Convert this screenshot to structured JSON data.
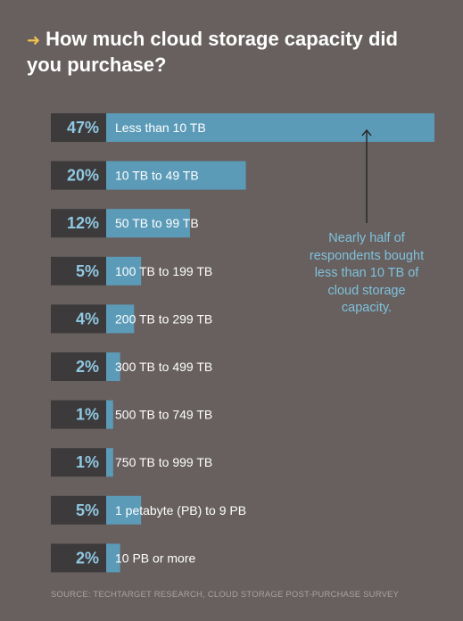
{
  "title": "How much cloud storage capacity did you purchase?",
  "annotation": "Nearly half of respondents bought less than 10 TB of cloud storage capacity.",
  "source": "SOURCE: TECHTARGET RESEARCH, CLOUD STORAGE POST-PURCHASE SURVEY",
  "colors": {
    "background": "#67605f",
    "bar": "#5b9bb8",
    "value_box": "#3c3a3b",
    "value_text": "#8fc9e3",
    "label_text": "#ffffff",
    "accent": "#f2c14e"
  },
  "chart_data": {
    "type": "bar",
    "orientation": "horizontal",
    "title": "How much cloud storage capacity did you purchase?",
    "categories": [
      "Less than 10 TB",
      "10 TB to 49 TB",
      "50 TB to 99 TB",
      "100 TB to 199 TB",
      "200 TB to 299 TB",
      "300 TB to 499 TB",
      "500 TB to 749 TB",
      "750 TB to 999 TB",
      "1 petabyte (PB) to 9 PB",
      "10 PB or more"
    ],
    "values": [
      47,
      20,
      12,
      5,
      4,
      2,
      1,
      1,
      5,
      2
    ],
    "value_labels": [
      "47%",
      "20%",
      "12%",
      "5%",
      "4%",
      "2%",
      "1%",
      "1%",
      "5%",
      "2%"
    ],
    "xlim": [
      0,
      47
    ],
    "grid": false,
    "legend": "none"
  }
}
